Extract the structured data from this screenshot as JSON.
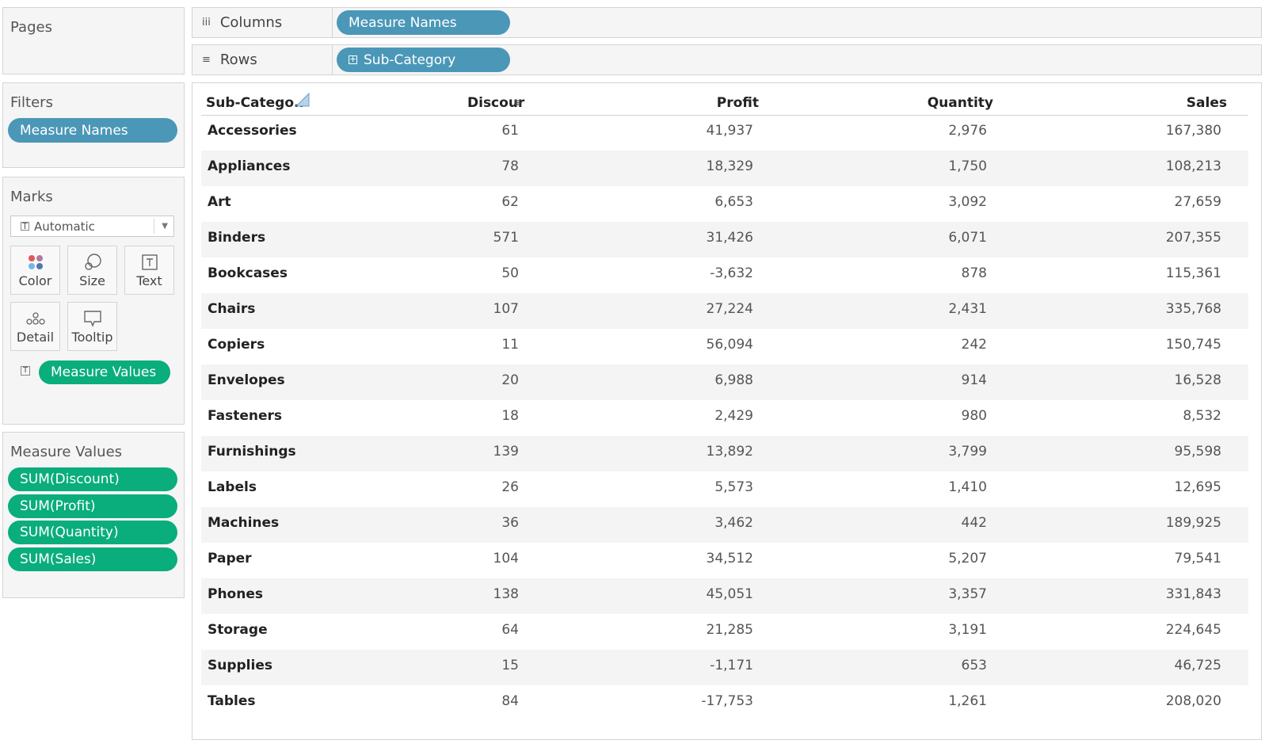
{
  "pages": {
    "title": "Pages"
  },
  "filters": {
    "title": "Filters",
    "pill": "Measure Names"
  },
  "marks": {
    "title": "Marks",
    "type": "Automatic",
    "buttons": {
      "color": "Color",
      "size": "Size",
      "text": "Text",
      "detail": "Detail",
      "tooltip": "Tooltip"
    },
    "text_pill": "Measure Values"
  },
  "measure_values": {
    "title": "Measure Values",
    "items": [
      "SUM(Discount)",
      "SUM(Profit)",
      "SUM(Quantity)",
      "SUM(Sales)"
    ]
  },
  "shelves": {
    "columns": {
      "label": "Columns",
      "pill": "Measure Names"
    },
    "rows": {
      "label": "Rows",
      "pill": "Sub-Category"
    }
  },
  "table": {
    "headers": [
      "Sub-Catego..",
      "Discour",
      "Profit",
      "Quantity",
      "Sales"
    ],
    "rows": [
      [
        "Accessories",
        "61",
        "41,937",
        "2,976",
        "167,380"
      ],
      [
        "Appliances",
        "78",
        "18,329",
        "1,750",
        "108,213"
      ],
      [
        "Art",
        "62",
        "6,653",
        "3,092",
        "27,659"
      ],
      [
        "Binders",
        "571",
        "31,426",
        "6,071",
        "207,355"
      ],
      [
        "Bookcases",
        "50",
        "-3,632",
        "878",
        "115,361"
      ],
      [
        "Chairs",
        "107",
        "27,224",
        "2,431",
        "335,768"
      ],
      [
        "Copiers",
        "11",
        "56,094",
        "242",
        "150,745"
      ],
      [
        "Envelopes",
        "20",
        "6,988",
        "914",
        "16,528"
      ],
      [
        "Fasteners",
        "18",
        "2,429",
        "980",
        "8,532"
      ],
      [
        "Furnishings",
        "139",
        "13,892",
        "3,799",
        "95,598"
      ],
      [
        "Labels",
        "26",
        "5,573",
        "1,410",
        "12,695"
      ],
      [
        "Machines",
        "36",
        "3,462",
        "442",
        "189,925"
      ],
      [
        "Paper",
        "104",
        "34,512",
        "5,207",
        "79,541"
      ],
      [
        "Phones",
        "138",
        "45,051",
        "3,357",
        "331,843"
      ],
      [
        "Storage",
        "64",
        "21,285",
        "3,191",
        "224,645"
      ],
      [
        "Supplies",
        "15",
        "-1,171",
        "653",
        "46,725"
      ],
      [
        "Tables",
        "84",
        "-17,753",
        "1,261",
        "208,020"
      ]
    ]
  },
  "colors": {
    "dimension_pill": "#4b97b8",
    "measure_pill": "#0aad7c"
  }
}
